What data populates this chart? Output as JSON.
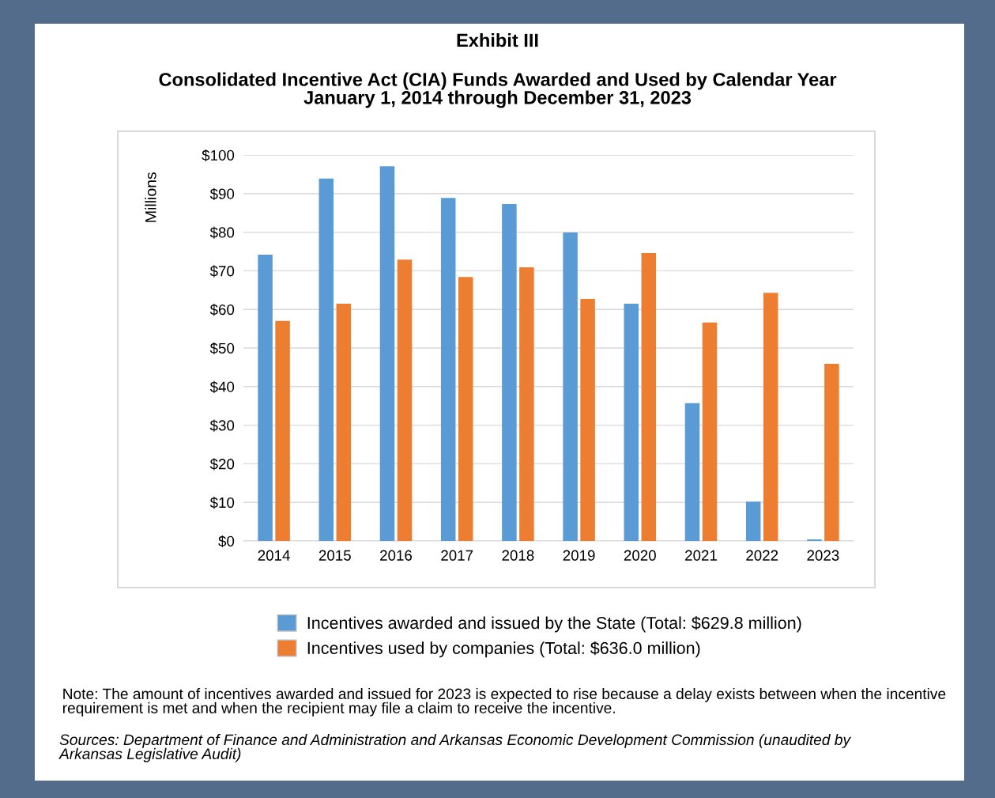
{
  "chart_data": {
    "type": "bar",
    "title": "Exhibit III",
    "subtitle": "Consolidated Incentive Act (CIA) Funds Awarded and Used by Calendar Year\nJanuary 1, 2014 through December 31, 2023",
    "ylabel": "Millions",
    "categories": [
      "2014",
      "2015",
      "2016",
      "2017",
      "2018",
      "2019",
      "2020",
      "2021",
      "2022",
      "2023"
    ],
    "series": [
      {
        "name": "Incentives awarded and issued by the State (Total: $629.8 million)",
        "color": "#5b9bd5",
        "values": [
          74.2,
          93.9,
          97.1,
          88.9,
          87.3,
          79.9,
          61.5,
          35.7,
          10.2,
          0.4
        ]
      },
      {
        "name": "Incentives used by companies (Total: $636.0 million)",
        "color": "#ed7d31",
        "values": [
          57.0,
          61.5,
          72.9,
          68.4,
          70.9,
          62.7,
          74.6,
          56.6,
          64.3,
          45.9
        ]
      }
    ],
    "ylim": [
      0,
      100
    ],
    "yticks": [
      {
        "value": 0,
        "label": "$0"
      },
      {
        "value": 10,
        "label": "$10"
      },
      {
        "value": 20,
        "label": "$20"
      },
      {
        "value": 30,
        "label": "$30"
      },
      {
        "value": 40,
        "label": "$40"
      },
      {
        "value": 50,
        "label": "$50"
      },
      {
        "value": 60,
        "label": "$60"
      },
      {
        "value": 70,
        "label": "$70"
      },
      {
        "value": 80,
        "label": "$80"
      },
      {
        "value": 90,
        "label": "$90"
      },
      {
        "value": 100,
        "label": "$100"
      }
    ],
    "grid": "y",
    "legend": "bottom",
    "annotations": [
      "Note: The amount of incentives awarded and issued for 2023 is expected to rise because a delay exists between when the incentive requirement is met and when the recipient may file a claim to receive the incentive.",
      "Sources: Department of Finance and Administration and Arkansas Economic Development Commission (unaudited by Arkansas Legislative Audit)"
    ]
  }
}
